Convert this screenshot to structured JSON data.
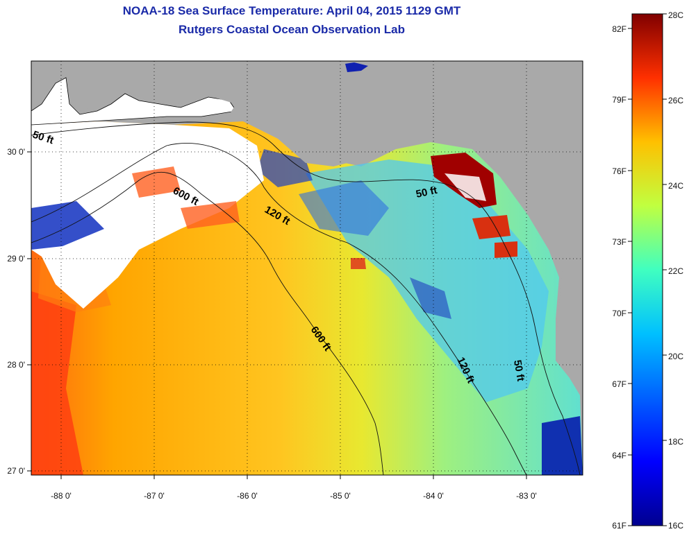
{
  "header": {
    "title": "NOAA-18 Sea Surface Temperature:  April 04, 2015 1129 GMT",
    "subtitle": "Rutgers Coastal Ocean Observation Lab"
  },
  "map": {
    "lon_ticks": [
      "-88 0'",
      "-87 0'",
      "-86 0'",
      "-85 0'",
      "-84 0'",
      "-83 0'"
    ],
    "lat_ticks": [
      "30 0'",
      "29 0'",
      "28 0'",
      "27 0'"
    ],
    "depth_labels": [
      "50 ft",
      "600 ft",
      "120 ft",
      "50 ft",
      "600 ft",
      "120 ft",
      "50 ft"
    ]
  },
  "colorbar": {
    "celsius_labels": [
      "28C",
      "26C",
      "24C",
      "22C",
      "20C",
      "18C",
      "16C"
    ],
    "fahrenheit_labels": [
      "82F",
      "79F",
      "76F",
      "73F",
      "70F",
      "67F",
      "64F",
      "61F"
    ],
    "colors": [
      "#00008f",
      "#0000ff",
      "#0080ff",
      "#00ffff",
      "#80ff80",
      "#ffff00",
      "#ff8000",
      "#ff0000",
      "#800000"
    ]
  }
}
